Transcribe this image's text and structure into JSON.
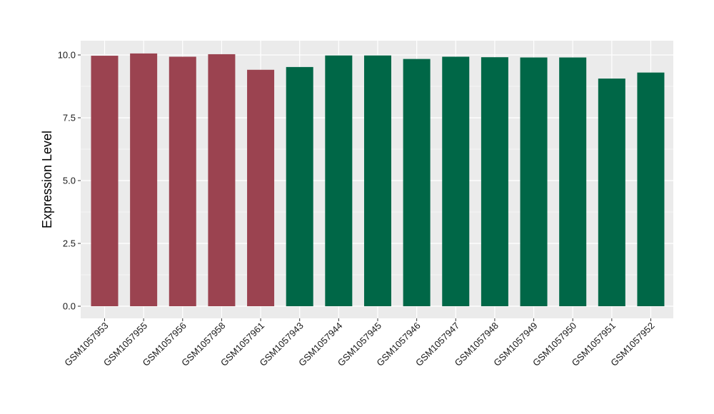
{
  "chart_data": {
    "type": "bar",
    "xlabel": "",
    "ylabel": "Expression Level",
    "ylim": [
      0,
      10.5
    ],
    "yticks": [
      0.0,
      2.5,
      5.0,
      7.5,
      10.0
    ],
    "ytick_labels": [
      "0.0",
      "2.5",
      "5.0",
      "7.5",
      "10.0"
    ],
    "grid": true,
    "legend": "none",
    "colors": {
      "group1": "#9b4350",
      "group2": "#006747",
      "panel": "#ebebeb",
      "grid": "#ffffff"
    },
    "categories": [
      "GSM1057953",
      "GSM1057955",
      "GSM1057956",
      "GSM1057958",
      "GSM1057961",
      "GSM1057943",
      "GSM1057944",
      "GSM1057945",
      "GSM1057946",
      "GSM1057947",
      "GSM1057948",
      "GSM1057949",
      "GSM1057950",
      "GSM1057951",
      "GSM1057952"
    ],
    "values": [
      9.97,
      10.06,
      9.93,
      10.03,
      9.41,
      9.52,
      9.98,
      9.98,
      9.84,
      9.93,
      9.91,
      9.9,
      9.9,
      9.06,
      9.3
    ],
    "groups": [
      1,
      1,
      1,
      1,
      1,
      2,
      2,
      2,
      2,
      2,
      2,
      2,
      2,
      2,
      2
    ]
  }
}
